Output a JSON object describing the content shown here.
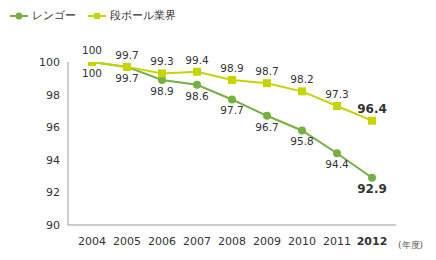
{
  "chart_data": {
    "type": "line",
    "categories": [
      "2004",
      "2005",
      "2006",
      "2007",
      "2008",
      "2009",
      "2010",
      "2011",
      "2012"
    ],
    "x_label": "(年度)",
    "series": [
      {
        "name": "レンゴー",
        "color": "#76b043",
        "marker": "circle",
        "values": [
          100,
          99.7,
          98.9,
          98.6,
          97.7,
          96.7,
          95.8,
          94.4,
          92.9
        ]
      },
      {
        "name": "段ボール業界",
        "color": "#c8d400",
        "marker": "square",
        "values": [
          100,
          99.7,
          99.3,
          99.4,
          98.9,
          98.7,
          98.2,
          97.3,
          96.4
        ]
      }
    ],
    "ylim": [
      90,
      100
    ],
    "yticks": [
      90,
      92,
      94,
      96,
      98,
      100
    ],
    "grid": false,
    "legend": "top-left",
    "data_labels": true
  }
}
